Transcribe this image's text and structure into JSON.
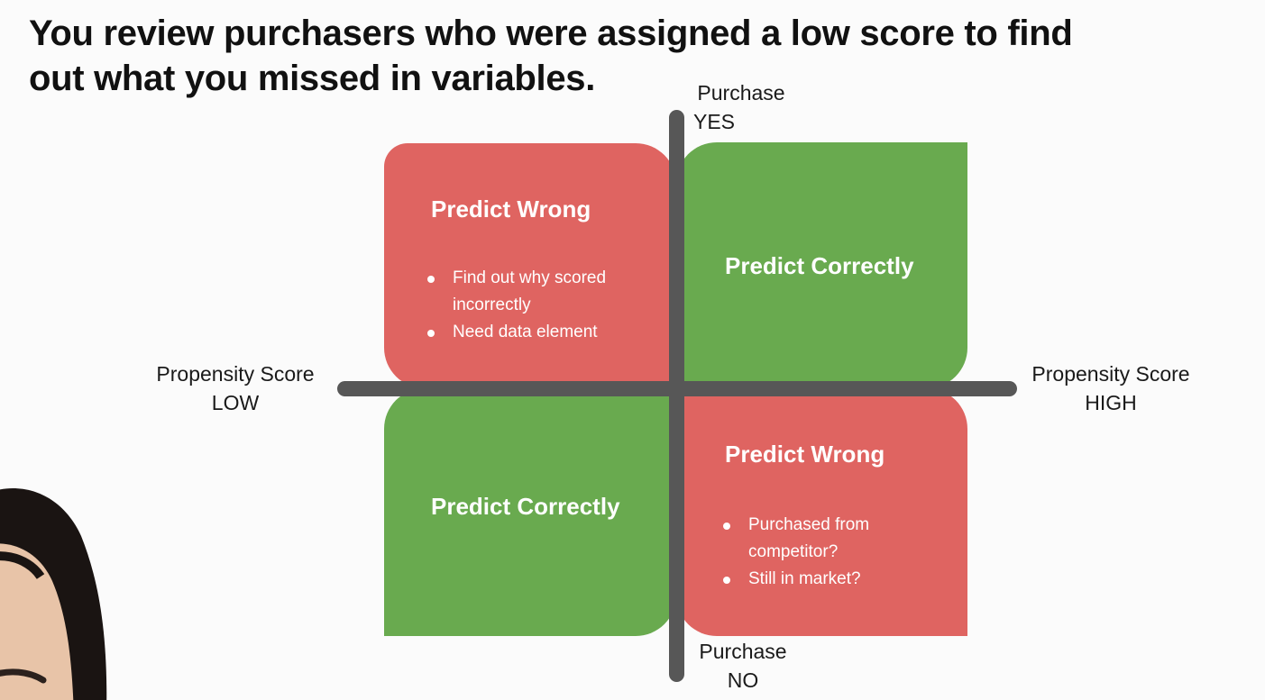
{
  "slide": {
    "title": "You review purchasers who were assigned a low score to find out what you missed in variables."
  },
  "axes": {
    "top": {
      "line1": "Purchase",
      "line2": "YES"
    },
    "bottom": {
      "line1": "Purchase",
      "line2": "NO"
    },
    "left": {
      "line1": "Propensity Score",
      "line2": "LOW"
    },
    "right": {
      "line1": "Propensity Score",
      "line2": "HIGH"
    }
  },
  "quadrants": {
    "top_left": {
      "title": "Predict Wrong",
      "color": "#df6461",
      "bullets": [
        "Find out why scored incorrectly",
        "Need data element"
      ]
    },
    "top_right": {
      "title": "Predict Correctly",
      "color": "#69aa4f"
    },
    "bottom_left": {
      "title": "Predict Correctly",
      "color": "#69aa4f"
    },
    "bottom_right": {
      "title": "Predict Wrong",
      "color": "#df6461",
      "bullets": [
        "Purchased from competitor?",
        "Still in market?"
      ]
    }
  },
  "colors": {
    "axis": "#575757",
    "background": "#fbfbfb"
  }
}
